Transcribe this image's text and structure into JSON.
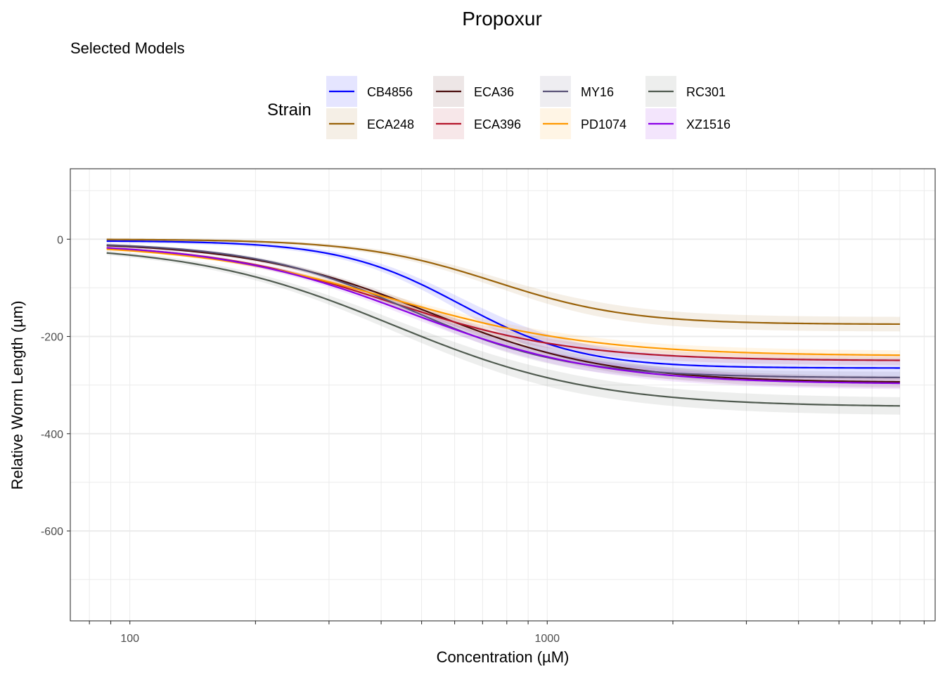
{
  "chart_data": {
    "type": "line",
    "title": "Propoxur",
    "subtitle": "Selected Models",
    "xlabel": "Concentration (µM)",
    "ylabel": "Relative Worm Length (µm)",
    "x_scale": "log10",
    "xlim": [
      72,
      8500
    ],
    "ylim": [
      -785,
      145
    ],
    "x_ticks": [
      100,
      1000
    ],
    "y_ticks": [
      0,
      -200,
      -400,
      -600
    ],
    "x_range": [
      88,
      7000
    ],
    "legend": {
      "title": "Strain",
      "position": "top"
    },
    "series": [
      {
        "name": "CB4856",
        "color": "#0000ff",
        "top": -3,
        "bottom": -265,
        "ec50": 620,
        "hill": 3.0,
        "ci": 20
      },
      {
        "name": "ECA248",
        "color": "#996209",
        "top": 0,
        "bottom": -175,
        "ec50": 750,
        "hill": 2.7,
        "ci": 15
      },
      {
        "name": "ECA36",
        "color": "#4a0d0d",
        "top": -5,
        "bottom": -295,
        "ec50": 520,
        "hill": 2.0,
        "ci": 12
      },
      {
        "name": "ECA396",
        "color": "#b5152b",
        "top": -8,
        "bottom": -250,
        "ec50": 420,
        "hill": 2.0,
        "ci": 10
      },
      {
        "name": "MY16",
        "color": "#5a5378",
        "top": -6,
        "bottom": -285,
        "ec50": 470,
        "hill": 2.3,
        "ci": 12
      },
      {
        "name": "PD1074",
        "color": "#ff9900",
        "top": -8,
        "bottom": -240,
        "ec50": 430,
        "hill": 1.8,
        "ci": 10
      },
      {
        "name": "RC301",
        "color": "#4f5a4f",
        "top": -10,
        "bottom": -345,
        "ec50": 430,
        "hill": 1.8,
        "ci": 18
      },
      {
        "name": "XZ1516",
        "color": "#8a00e6",
        "top": -6,
        "bottom": -298,
        "ec50": 470,
        "hill": 1.9,
        "ci": 12
      }
    ]
  }
}
